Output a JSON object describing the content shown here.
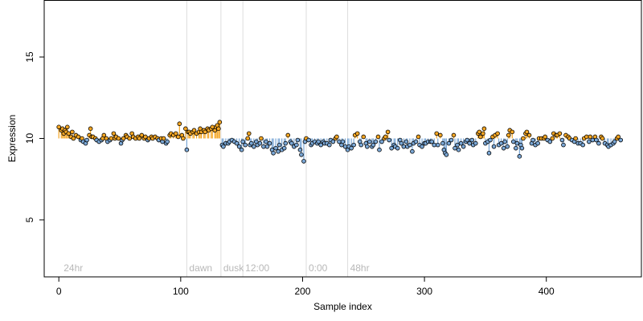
{
  "chart_data": {
    "type": "scatter",
    "title": "",
    "xlabel": "Sample index",
    "ylabel": "Expression",
    "xlim": [
      -12,
      478
    ],
    "ylim": [
      1.5,
      18.5
    ],
    "x_ticks": [
      0,
      100,
      200,
      300,
      400
    ],
    "y_ticks": [
      5,
      10,
      15
    ],
    "baseline": 10,
    "grid": false,
    "legend": "none",
    "colors": {
      "above_baseline": "#f5a623",
      "below_baseline": "#7aa7d6",
      "point_edge": "#000000",
      "annotation_line": "#dddddd",
      "annotation_text": "#b8b8b8"
    },
    "annotations": [
      {
        "x": 2,
        "label": "24hr",
        "line": false
      },
      {
        "x": 105,
        "label": "dawn",
        "line": true
      },
      {
        "x": 133,
        "label": "dusk",
        "line": true
      },
      {
        "x": 151,
        "label": "12:00",
        "line": true
      },
      {
        "x": 203,
        "label": "0:00",
        "line": true
      },
      {
        "x": 237,
        "label": "48hr",
        "line": true
      }
    ],
    "points": [
      [
        0,
        10.7
      ],
      [
        2,
        10.5
      ],
      [
        3,
        10.6
      ],
      [
        4,
        10.3
      ],
      [
        5,
        10.5
      ],
      [
        6,
        10.4
      ],
      [
        7,
        10.7
      ],
      [
        8,
        10.3
      ],
      [
        10,
        10.1
      ],
      [
        11,
        10.4
      ],
      [
        12,
        10.0
      ],
      [
        14,
        10.2
      ],
      [
        16,
        10.1
      ],
      [
        18,
        9.9
      ],
      [
        19,
        10.0
      ],
      [
        20,
        9.8
      ],
      [
        22,
        9.7
      ],
      [
        23,
        9.9
      ],
      [
        25,
        10.2
      ],
      [
        26,
        10.6
      ],
      [
        27,
        10.1
      ],
      [
        28,
        10.1
      ],
      [
        30,
        10.0
      ],
      [
        31,
        9.9
      ],
      [
        33,
        9.8
      ],
      [
        35,
        9.9
      ],
      [
        36,
        10.0
      ],
      [
        37,
        10.2
      ],
      [
        39,
        10.0
      ],
      [
        40,
        9.8
      ],
      [
        42,
        9.9
      ],
      [
        43,
        10.0
      ],
      [
        45,
        10.3
      ],
      [
        46,
        10.0
      ],
      [
        47,
        10.1
      ],
      [
        49,
        10.0
      ],
      [
        51,
        9.7
      ],
      [
        52,
        9.9
      ],
      [
        53,
        10.0
      ],
      [
        55,
        10.2
      ],
      [
        56,
        10.1
      ],
      [
        58,
        10.0
      ],
      [
        60,
        10.3
      ],
      [
        61,
        10.1
      ],
      [
        63,
        10.0
      ],
      [
        65,
        10.1
      ],
      [
        66,
        10.0
      ],
      [
        68,
        10.2
      ],
      [
        70,
        10.0
      ],
      [
        71,
        10.1
      ],
      [
        73,
        9.9
      ],
      [
        74,
        10.0
      ],
      [
        76,
        10.1
      ],
      [
        77,
        10.0
      ],
      [
        79,
        10.1
      ],
      [
        81,
        10.0
      ],
      [
        82,
        9.9
      ],
      [
        84,
        10.0
      ],
      [
        85,
        9.8
      ],
      [
        86,
        10.0
      ],
      [
        88,
        9.7
      ],
      [
        89,
        9.8
      ],
      [
        91,
        10.2
      ],
      [
        92,
        10.3
      ],
      [
        94,
        10.2
      ],
      [
        96,
        10.3
      ],
      [
        98,
        10.1
      ],
      [
        99,
        10.9
      ],
      [
        101,
        10.2
      ],
      [
        102,
        10.0
      ],
      [
        104,
        10.6
      ],
      [
        105,
        9.3
      ],
      [
        106,
        10.4
      ],
      [
        107,
        10.4
      ],
      [
        108,
        10.3
      ],
      [
        110,
        10.4
      ],
      [
        111,
        10.5
      ],
      [
        113,
        10.3
      ],
      [
        115,
        10.4
      ],
      [
        116,
        10.6
      ],
      [
        117,
        10.4
      ],
      [
        119,
        10.5
      ],
      [
        120,
        10.4
      ],
      [
        122,
        10.6
      ],
      [
        123,
        10.5
      ],
      [
        125,
        10.6
      ],
      [
        126,
        10.7
      ],
      [
        128,
        10.5
      ],
      [
        129,
        10.7
      ],
      [
        130,
        10.8
      ],
      [
        131,
        10.6
      ],
      [
        132,
        11.0
      ],
      [
        134,
        9.6
      ],
      [
        135,
        9.5
      ],
      [
        137,
        9.7
      ],
      [
        139,
        9.7
      ],
      [
        140,
        9.8
      ],
      [
        142,
        9.9
      ],
      [
        144,
        9.8
      ],
      [
        146,
        9.7
      ],
      [
        148,
        9.5
      ],
      [
        150,
        9.3
      ],
      [
        151,
        9.8
      ],
      [
        153,
        9.6
      ],
      [
        155,
        10.0
      ],
      [
        156,
        10.3
      ],
      [
        157,
        9.6
      ],
      [
        158,
        9.7
      ],
      [
        160,
        9.5
      ],
      [
        162,
        9.8
      ],
      [
        163,
        9.6
      ],
      [
        165,
        9.7
      ],
      [
        166,
        10.0
      ],
      [
        168,
        9.5
      ],
      [
        170,
        9.8
      ],
      [
        171,
        9.5
      ],
      [
        173,
        9.7
      ],
      [
        175,
        9.3
      ],
      [
        176,
        9.1
      ],
      [
        178,
        9.4
      ],
      [
        180,
        9.2
      ],
      [
        181,
        9.6
      ],
      [
        183,
        9.3
      ],
      [
        185,
        9.4
      ],
      [
        186,
        9.7
      ],
      [
        188,
        10.2
      ],
      [
        190,
        9.8
      ],
      [
        191,
        9.7
      ],
      [
        193,
        9.5
      ],
      [
        195,
        9.6
      ],
      [
        196,
        9.9
      ],
      [
        198,
        9.3
      ],
      [
        199,
        9.0
      ],
      [
        201,
        8.6
      ],
      [
        202,
        9.8
      ],
      [
        203,
        10.0
      ],
      [
        205,
        9.9
      ],
      [
        207,
        9.6
      ],
      [
        208,
        9.7
      ],
      [
        210,
        9.8
      ],
      [
        212,
        9.7
      ],
      [
        213,
        9.8
      ],
      [
        215,
        9.6
      ],
      [
        217,
        9.8
      ],
      [
        218,
        9.7
      ],
      [
        220,
        9.7
      ],
      [
        222,
        9.6
      ],
      [
        223,
        9.9
      ],
      [
        225,
        9.8
      ],
      [
        227,
        10.0
      ],
      [
        228,
        10.1
      ],
      [
        230,
        9.8
      ],
      [
        232,
        9.6
      ],
      [
        233,
        9.8
      ],
      [
        235,
        9.5
      ],
      [
        237,
        9.3
      ],
      [
        238,
        9.5
      ],
      [
        240,
        9.4
      ],
      [
        242,
        9.6
      ],
      [
        243,
        10.2
      ],
      [
        245,
        10.3
      ],
      [
        247,
        9.8
      ],
      [
        248,
        9.6
      ],
      [
        250,
        10.1
      ],
      [
        252,
        9.7
      ],
      [
        253,
        9.5
      ],
      [
        255,
        9.8
      ],
      [
        257,
        9.5
      ],
      [
        258,
        9.6
      ],
      [
        260,
        9.8
      ],
      [
        262,
        10.1
      ],
      [
        263,
        9.3
      ],
      [
        265,
        9.8
      ],
      [
        267,
        10.0
      ],
      [
        268,
        10.1
      ],
      [
        270,
        10.4
      ],
      [
        271,
        9.9
      ],
      [
        273,
        9.4
      ],
      [
        275,
        9.6
      ],
      [
        276,
        9.5
      ],
      [
        278,
        9.4
      ],
      [
        280,
        9.9
      ],
      [
        281,
        9.7
      ],
      [
        283,
        9.5
      ],
      [
        285,
        9.8
      ],
      [
        286,
        9.5
      ],
      [
        288,
        9.6
      ],
      [
        290,
        9.2
      ],
      [
        291,
        9.7
      ],
      [
        293,
        9.8
      ],
      [
        295,
        10.1
      ],
      [
        296,
        9.6
      ],
      [
        298,
        9.5
      ],
      [
        300,
        9.7
      ],
      [
        301,
        9.7
      ],
      [
        303,
        9.8
      ],
      [
        305,
        9.8
      ],
      [
        306,
        9.8
      ],
      [
        308,
        9.6
      ],
      [
        310,
        10.3
      ],
      [
        311,
        9.6
      ],
      [
        313,
        10.2
      ],
      [
        315,
        9.7
      ],
      [
        316,
        9.3
      ],
      [
        317,
        9.1
      ],
      [
        318,
        9.0
      ],
      [
        320,
        9.7
      ],
      [
        322,
        9.9
      ],
      [
        324,
        10.2
      ],
      [
        325,
        9.4
      ],
      [
        327,
        9.6
      ],
      [
        328,
        9.3
      ],
      [
        330,
        9.7
      ],
      [
        332,
        9.5
      ],
      [
        334,
        9.8
      ],
      [
        335,
        9.9
      ],
      [
        337,
        9.7
      ],
      [
        339,
        9.9
      ],
      [
        340,
        9.6
      ],
      [
        342,
        9.7
      ],
      [
        344,
        10.3
      ],
      [
        345,
        10.4
      ],
      [
        346,
        10.1
      ],
      [
        348,
        10.3
      ],
      [
        349,
        10.6
      ],
      [
        350,
        9.7
      ],
      [
        352,
        9.8
      ],
      [
        353,
        9.1
      ],
      [
        354,
        9.9
      ],
      [
        356,
        10.1
      ],
      [
        357,
        9.5
      ],
      [
        358,
        10.2
      ],
      [
        360,
        10.3
      ],
      [
        361,
        9.6
      ],
      [
        363,
        9.7
      ],
      [
        365,
        9.4
      ],
      [
        366,
        9.8
      ],
      [
        368,
        9.5
      ],
      [
        369,
        10.2
      ],
      [
        370,
        10.5
      ],
      [
        372,
        10.4
      ],
      [
        373,
        9.8
      ],
      [
        375,
        9.4
      ],
      [
        376,
        9.7
      ],
      [
        378,
        8.9
      ],
      [
        379,
        9.6
      ],
      [
        380,
        9.4
      ],
      [
        381,
        10.0
      ],
      [
        383,
        10.3
      ],
      [
        384,
        10.4
      ],
      [
        386,
        10.2
      ],
      [
        388,
        9.7
      ],
      [
        389,
        9.9
      ],
      [
        391,
        9.6
      ],
      [
        393,
        9.7
      ],
      [
        394,
        10.0
      ],
      [
        396,
        10.0
      ],
      [
        398,
        10.0
      ],
      [
        399,
        10.1
      ],
      [
        401,
        9.9
      ],
      [
        403,
        9.8
      ],
      [
        405,
        10.0
      ],
      [
        406,
        10.3
      ],
      [
        408,
        10.2
      ],
      [
        409,
        10.2
      ],
      [
        411,
        10.3
      ],
      [
        413,
        9.9
      ],
      [
        414,
        9.6
      ],
      [
        416,
        10.2
      ],
      [
        418,
        10.1
      ],
      [
        419,
        10.0
      ],
      [
        421,
        9.9
      ],
      [
        423,
        9.8
      ],
      [
        424,
        10.0
      ],
      [
        426,
        9.7
      ],
      [
        428,
        9.7
      ],
      [
        430,
        9.6
      ],
      [
        431,
        10.0
      ],
      [
        433,
        10.1
      ],
      [
        435,
        9.8
      ],
      [
        436,
        10.1
      ],
      [
        438,
        9.9
      ],
      [
        440,
        10.1
      ],
      [
        441,
        9.9
      ],
      [
        443,
        9.7
      ],
      [
        445,
        10.1
      ],
      [
        446,
        10.0
      ],
      [
        448,
        9.7
      ],
      [
        450,
        9.6
      ],
      [
        451,
        9.5
      ],
      [
        453,
        9.6
      ],
      [
        455,
        9.7
      ],
      [
        456,
        9.8
      ],
      [
        458,
        10.0
      ],
      [
        459,
        10.1
      ],
      [
        461,
        9.9
      ]
    ]
  }
}
